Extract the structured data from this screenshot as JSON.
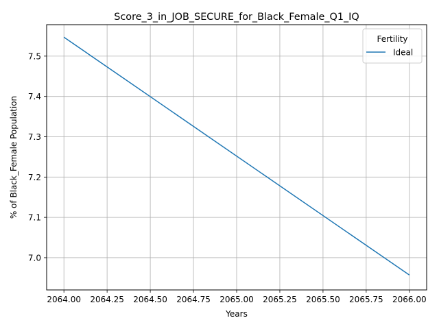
{
  "chart_data": {
    "type": "line",
    "title": "Score_3_in_JOB_SECURE_for_Black_Female_Q1_IQ",
    "xlabel": "Years",
    "ylabel": "% of Black_Female Population",
    "xlim": [
      2063.9,
      2066.1
    ],
    "ylim": [
      6.92,
      7.578
    ],
    "x_ticks": [
      2064.0,
      2064.25,
      2064.5,
      2064.75,
      2065.0,
      2065.25,
      2065.5,
      2065.75,
      2066.0
    ],
    "x_tick_labels": [
      "2064.00",
      "2064.25",
      "2064.50",
      "2064.75",
      "2065.00",
      "2065.25",
      "2065.50",
      "2065.75",
      "2066.00"
    ],
    "y_ticks": [
      7.0,
      7.1,
      7.2,
      7.3,
      7.4,
      7.5
    ],
    "y_tick_labels": [
      "7.0",
      "7.1",
      "7.2",
      "7.3",
      "7.4",
      "7.5"
    ],
    "grid": true,
    "legend": {
      "title": "Fertility",
      "position": "top-right"
    },
    "series": [
      {
        "name": "Ideal",
        "color": "#1f77b4",
        "x": [
          2064,
          2066
        ],
        "y": [
          7.547,
          6.957
        ]
      }
    ]
  }
}
